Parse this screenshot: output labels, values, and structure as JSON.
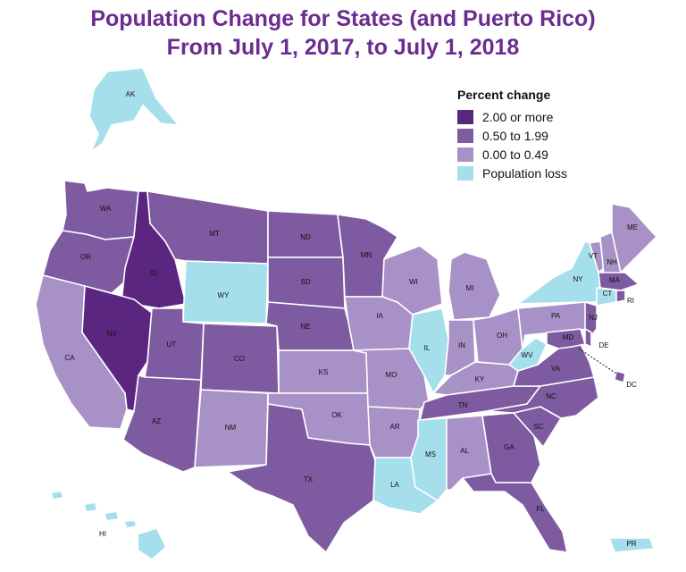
{
  "title": {
    "line1": "Population Change for States (and Puerto Rico)",
    "line2": "From July 1, 2017, to July 1, 2018"
  },
  "legend": {
    "title": "Percent change",
    "items": [
      {
        "label": "2.00 or more",
        "color": "#5b2680"
      },
      {
        "label": "0.50 to 1.99",
        "color": "#7e5aa0"
      },
      {
        "label": "0.00 to 0.49",
        "color": "#a891c6"
      },
      {
        "label": "Population loss",
        "color": "#a6dfec"
      }
    ]
  },
  "states": {
    "WA": "WA",
    "OR": "OR",
    "CA": "CA",
    "ID": "ID",
    "NV": "NV",
    "MT": "MT",
    "WY": "WY",
    "UT": "UT",
    "AZ": "AZ",
    "CO": "CO",
    "NM": "NM",
    "ND": "ND",
    "SD": "SD",
    "NE": "NE",
    "KS": "KS",
    "OK": "OK",
    "TX": "TX",
    "MN": "MN",
    "IA": "IA",
    "MO": "MO",
    "AR": "AR",
    "LA": "LA",
    "WI": "WI",
    "IL": "IL",
    "MI": "MI",
    "IN": "IN",
    "OH": "OH",
    "KY": "KY",
    "TN": "TN",
    "MS": "MS",
    "AL": "AL",
    "GA": "GA",
    "FL": "FL",
    "SC": "SC",
    "NC": "NC",
    "VA": "VA",
    "WV": "WV",
    "PA": "PA",
    "NY": "NY",
    "VT": "VT",
    "NH": "NH",
    "ME": "ME",
    "MA": "MA",
    "RI": "RI",
    "CT": "CT",
    "NJ": "NJ",
    "DE": "DE",
    "MD": "MD",
    "DC": "DC",
    "AK": "AK",
    "HI": "HI",
    "PR": "PR"
  }
}
